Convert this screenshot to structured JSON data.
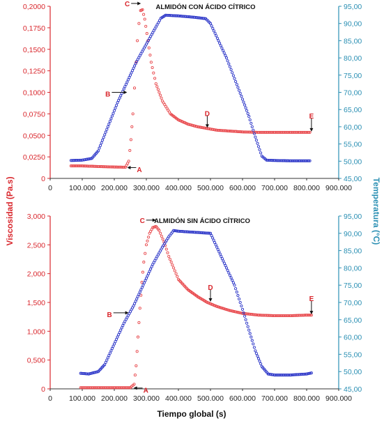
{
  "labels": {
    "y_left": "Viscosidad (Pa.s)",
    "y_right": "Temperatura (°C)",
    "x": "Tiempo global (s)"
  },
  "colors": {
    "viscosity": "#e8484c",
    "temperature": "#2b35c8",
    "left_axis": "#d9262c",
    "right_axis": "#2a8fb3"
  },
  "chart_data": [
    {
      "type": "scatter",
      "title": "ALMIDÓN CON ÁCIDO CÍTRICO",
      "xlabel": "",
      "ylabel": "Viscosidad (Pa.s)",
      "y2label": "Temperatura (°C)",
      "xlim": [
        0,
        900000
      ],
      "ylim": [
        0,
        0.2
      ],
      "y2lim": [
        45,
        95
      ],
      "x_ticks": [
        0,
        100000,
        200000,
        300000,
        400000,
        500000,
        600000,
        700000,
        800000,
        900000
      ],
      "x_tick_labels": [
        "0",
        "100.000",
        "200.000",
        "300.000",
        "400.000",
        "500.000",
        "600.000",
        "700.000",
        "800.000",
        "900.000"
      ],
      "y_ticks": [
        0,
        0.025,
        0.05,
        0.075,
        0.1,
        0.125,
        0.15,
        0.175,
        0.2
      ],
      "y_tick_labels": [
        "0",
        "0,0250",
        "0,0500",
        "0,0750",
        "0,1000",
        "0,1250",
        "0,1500",
        "0,1750",
        "0,2000"
      ],
      "y2_ticks": [
        45,
        50,
        55,
        60,
        65,
        70,
        75,
        80,
        85,
        90,
        95
      ],
      "y2_tick_labels": [
        "45,00",
        "50,00",
        "55,00",
        "60,00",
        "65,00",
        "70,00",
        "75,00",
        "80,00",
        "85,00",
        "90,00",
        "95,00"
      ],
      "series": [
        {
          "name": "Viscosidad",
          "axis": "left",
          "points": [
            [
              65000,
              0.0145
            ],
            [
              100000,
              0.0145
            ],
            [
              150000,
              0.0138
            ],
            [
              200000,
              0.0132
            ],
            [
              235000,
              0.013
            ],
            [
              245000,
              0.02
            ],
            [
              252000,
              0.045
            ],
            [
              258000,
              0.075
            ],
            [
              263000,
              0.105
            ],
            [
              268000,
              0.135
            ],
            [
              272000,
              0.16
            ],
            [
              277000,
              0.18
            ],
            [
              282000,
              0.195
            ],
            [
              288000,
              0.196
            ],
            [
              295000,
              0.185
            ],
            [
              305000,
              0.16
            ],
            [
              315000,
              0.135
            ],
            [
              330000,
              0.11
            ],
            [
              350000,
              0.09
            ],
            [
              375000,
              0.075
            ],
            [
              400000,
              0.068
            ],
            [
              430000,
              0.063
            ],
            [
              460000,
              0.06
            ],
            [
              490000,
              0.058
            ],
            [
              520000,
              0.056
            ],
            [
              560000,
              0.055
            ],
            [
              600000,
              0.054
            ],
            [
              650000,
              0.0535
            ],
            [
              700000,
              0.0535
            ],
            [
              750000,
              0.0535
            ],
            [
              810000,
              0.0535
            ]
          ]
        },
        {
          "name": "Temperatura",
          "axis": "right",
          "points": [
            [
              65000,
              50.2
            ],
            [
              100000,
              50.3
            ],
            [
              130000,
              50.8
            ],
            [
              150000,
              53
            ],
            [
              180000,
              60
            ],
            [
              210000,
              67
            ],
            [
              240000,
              73
            ],
            [
              270000,
              79
            ],
            [
              300000,
              84
            ],
            [
              330000,
              89
            ],
            [
              345000,
              91.5
            ],
            [
              360000,
              92.4
            ],
            [
              400000,
              92.2
            ],
            [
              450000,
              91.8
            ],
            [
              485000,
              91.4
            ],
            [
              500000,
              90
            ],
            [
              525000,
              85
            ],
            [
              550000,
              80
            ],
            [
              575000,
              74
            ],
            [
              600000,
              68
            ],
            [
              620000,
              63
            ],
            [
              640000,
              57
            ],
            [
              660000,
              51.5
            ],
            [
              675000,
              50.3
            ],
            [
              700000,
              50.2
            ],
            [
              750000,
              50.1
            ],
            [
              810000,
              50.1
            ]
          ]
        }
      ],
      "annotations": [
        {
          "label": "A",
          "x": 240000,
          "y": 0.013
        },
        {
          "label": "B",
          "x": 240000,
          "y": 70,
          "axis": "right"
        },
        {
          "label": "C",
          "x": 283000,
          "y": 0.196
        },
        {
          "label": "D",
          "x": 490000,
          "y": 0.058
        },
        {
          "label": "E",
          "x": 815000,
          "y": 0.0535
        }
      ]
    },
    {
      "type": "scatter",
      "title": "ALMIDÓN SIN ÁCIDO CÍTRICO",
      "xlabel": "Tiempo global (s)",
      "ylabel": "Viscosidad (Pa.s)",
      "y2label": "Temperatura (°C)",
      "xlim": [
        0,
        900000
      ],
      "ylim": [
        0,
        3.0
      ],
      "y2lim": [
        45,
        95
      ],
      "x_ticks": [
        0,
        100000,
        200000,
        300000,
        400000,
        500000,
        600000,
        700000,
        800000,
        900000
      ],
      "x_tick_labels": [
        "0",
        "100.000",
        "200.000",
        "300.000",
        "400.000",
        "500.000",
        "600.000",
        "700.000",
        "800.000",
        "900.000"
      ],
      "y_ticks": [
        0,
        0.5,
        1.0,
        1.5,
        2.0,
        2.5,
        3.0
      ],
      "y_tick_labels": [
        "0",
        "0,500",
        "1,000",
        "1,500",
        "2,000",
        "2,500",
        "3,000"
      ],
      "y2_ticks": [
        45,
        50,
        55,
        60,
        65,
        70,
        75,
        80,
        85,
        90,
        95
      ],
      "y2_tick_labels": [
        "45,00",
        "50,00",
        "55,00",
        "60,00",
        "65,00",
        "70,00",
        "75,00",
        "80,00",
        "85,00",
        "90,00",
        "95,00"
      ],
      "series": [
        {
          "name": "Viscosidad",
          "axis": "left",
          "points": [
            [
              95000,
              0.02
            ],
            [
              150000,
              0.02
            ],
            [
              200000,
              0.02
            ],
            [
              250000,
              0.02
            ],
            [
              262000,
              0.08
            ],
            [
              268000,
              0.4
            ],
            [
              274000,
              0.9
            ],
            [
              280000,
              1.4
            ],
            [
              286000,
              1.85
            ],
            [
              292000,
              2.2
            ],
            [
              300000,
              2.5
            ],
            [
              310000,
              2.7
            ],
            [
              320000,
              2.8
            ],
            [
              330000,
              2.82
            ],
            [
              340000,
              2.75
            ],
            [
              355000,
              2.55
            ],
            [
              370000,
              2.3
            ],
            [
              385000,
              2.1
            ],
            [
              400000,
              1.9
            ],
            [
              430000,
              1.72
            ],
            [
              460000,
              1.6
            ],
            [
              490000,
              1.5
            ],
            [
              520000,
              1.43
            ],
            [
              560000,
              1.36
            ],
            [
              600000,
              1.31
            ],
            [
              650000,
              1.28
            ],
            [
              700000,
              1.27
            ],
            [
              750000,
              1.27
            ],
            [
              800000,
              1.28
            ],
            [
              815000,
              1.28
            ]
          ]
        },
        {
          "name": "Temperatura",
          "axis": "right",
          "points": [
            [
              95000,
              49.5
            ],
            [
              120000,
              49.3
            ],
            [
              150000,
              50
            ],
            [
              170000,
              52
            ],
            [
              200000,
              58
            ],
            [
              230000,
              64
            ],
            [
              260000,
              69
            ],
            [
              290000,
              75
            ],
            [
              320000,
              81
            ],
            [
              350000,
              86
            ],
            [
              370000,
              89
            ],
            [
              385000,
              90.8
            ],
            [
              400000,
              90.6
            ],
            [
              450000,
              90.3
            ],
            [
              500000,
              90
            ],
            [
              510000,
              88
            ],
            [
              530000,
              84
            ],
            [
              550000,
              80
            ],
            [
              575000,
              75
            ],
            [
              600000,
              68
            ],
            [
              620000,
              62
            ],
            [
              640000,
              56
            ],
            [
              660000,
              51.5
            ],
            [
              680000,
              49.3
            ],
            [
              700000,
              49
            ],
            [
              750000,
              49
            ],
            [
              800000,
              49.3
            ],
            [
              815000,
              49.6
            ]
          ]
        }
      ],
      "annotations": [
        {
          "label": "A",
          "x": 260000,
          "y": 0.02
        },
        {
          "label": "B",
          "x": 245000,
          "y": 67,
          "axis": "right"
        },
        {
          "label": "C",
          "x": 330000,
          "y": 2.82
        },
        {
          "label": "D",
          "x": 500000,
          "y": 1.5
        },
        {
          "label": "E",
          "x": 815000,
          "y": 1.28
        }
      ]
    }
  ]
}
